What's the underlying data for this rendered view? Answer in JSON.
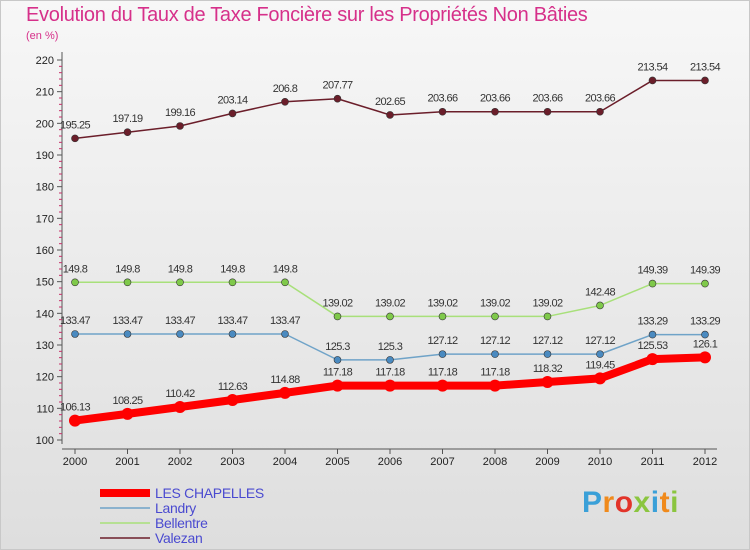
{
  "header": {
    "title": "Evolution du Taux de Taxe Foncière sur les Propriétés Non Bâties",
    "unit": "(en %)"
  },
  "branding": {
    "logo_text": "Proxiti"
  },
  "chart_data": {
    "type": "line",
    "title": "Evolution du Taux de Taxe Foncière sur les Propriétés Non Bâties",
    "ylabel": "(en %)",
    "xlabel": "",
    "ylim": [
      100,
      220
    ],
    "yticks": [
      100,
      110,
      120,
      130,
      140,
      150,
      160,
      170,
      180,
      190,
      200,
      210,
      220
    ],
    "categories": [
      "2000",
      "2001",
      "2002",
      "2003",
      "2004",
      "2005",
      "2006",
      "2007",
      "2008",
      "2009",
      "2010",
      "2011",
      "2012"
    ],
    "grid": false,
    "legend_position": "bottom-left",
    "series": [
      {
        "name": "Valezan",
        "color": "#6b1e2a",
        "marker": "#6b1e2a",
        "values": [
          195.25,
          197.19,
          199.16,
          203.14,
          206.8,
          207.77,
          202.65,
          203.66,
          203.66,
          203.66,
          203.66,
          213.54,
          213.54
        ],
        "labels": [
          "195.25",
          "197.19",
          "199.16",
          "203.14",
          "206.8",
          "207.77",
          "202.65",
          "203.66",
          "203.66",
          "203.66",
          "203.66",
          "213.54",
          "213.54"
        ]
      },
      {
        "name": "Bellentre",
        "color": "#a8e07a",
        "marker": "#7fc94a",
        "values": [
          149.8,
          149.8,
          149.8,
          149.8,
          149.8,
          139.02,
          139.02,
          139.02,
          139.02,
          139.02,
          142.48,
          149.39,
          149.39
        ],
        "labels": [
          "149.8",
          "149.8",
          "149.8",
          "149.8",
          "149.8",
          "139.02",
          "139.02",
          "139.02",
          "139.02",
          "139.02",
          "142.48",
          "149.39",
          "149.39"
        ]
      },
      {
        "name": "Landry",
        "color": "#6fa3c8",
        "marker": "#4a8ac0",
        "values": [
          133.47,
          133.47,
          133.47,
          133.47,
          133.47,
          125.3,
          125.3,
          127.12,
          127.12,
          127.12,
          127.12,
          133.29,
          133.29
        ],
        "labels": [
          "133.47",
          "133.47",
          "133.47",
          "133.47",
          "133.47",
          "125.3",
          "125.3",
          "127.12",
          "127.12",
          "127.12",
          "127.12",
          "133.29",
          "133.29"
        ]
      },
      {
        "name": "LES CHAPELLES",
        "color": "#ff0000",
        "marker": "#ff0000",
        "values": [
          106.13,
          108.25,
          110.42,
          112.63,
          114.88,
          117.18,
          117.18,
          117.18,
          117.18,
          118.32,
          119.45,
          125.53,
          126.1
        ],
        "labels": [
          "106.13",
          "108.25",
          "110.42",
          "112.63",
          "114.88",
          "117.18",
          "117.18",
          "117.18",
          "117.18",
          "118.32",
          "119.45",
          "125.53",
          "126.1"
        ]
      }
    ],
    "legend_order": [
      "LES CHAPELLES",
      "Landry",
      "Bellentre",
      "Valezan"
    ]
  }
}
